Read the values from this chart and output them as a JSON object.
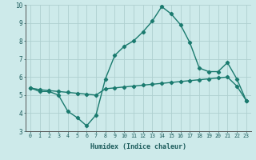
{
  "x": [
    0,
    1,
    2,
    3,
    4,
    5,
    6,
    7,
    8,
    9,
    10,
    11,
    12,
    13,
    14,
    15,
    16,
    17,
    18,
    19,
    20,
    21,
    22,
    23
  ],
  "line1": [
    5.4,
    5.2,
    5.2,
    5.0,
    4.1,
    3.75,
    3.3,
    3.9,
    5.9,
    7.2,
    7.7,
    8.0,
    8.5,
    9.1,
    9.9,
    9.5,
    8.9,
    7.9,
    6.5,
    6.3,
    6.3,
    6.8,
    5.9,
    4.7
  ],
  "line2": [
    5.4,
    5.3,
    5.25,
    5.2,
    5.15,
    5.1,
    5.05,
    5.0,
    5.35,
    5.4,
    5.45,
    5.5,
    5.55,
    5.6,
    5.65,
    5.7,
    5.75,
    5.8,
    5.85,
    5.9,
    5.95,
    6.0,
    5.5,
    4.7
  ],
  "xlabel": "Humidex (Indice chaleur)",
  "ylim": [
    3,
    10
  ],
  "xlim": [
    -0.5,
    23.5
  ],
  "yticks": [
    3,
    4,
    5,
    6,
    7,
    8,
    9,
    10
  ],
  "xticks": [
    0,
    1,
    2,
    3,
    4,
    5,
    6,
    7,
    8,
    9,
    10,
    11,
    12,
    13,
    14,
    15,
    16,
    17,
    18,
    19,
    20,
    21,
    22,
    23
  ],
  "line_color": "#1a7a6e",
  "bg_color": "#cdeaea",
  "grid_color": "#aecfcf",
  "marker": "D",
  "marker_size": 2.2,
  "linewidth": 1.0
}
